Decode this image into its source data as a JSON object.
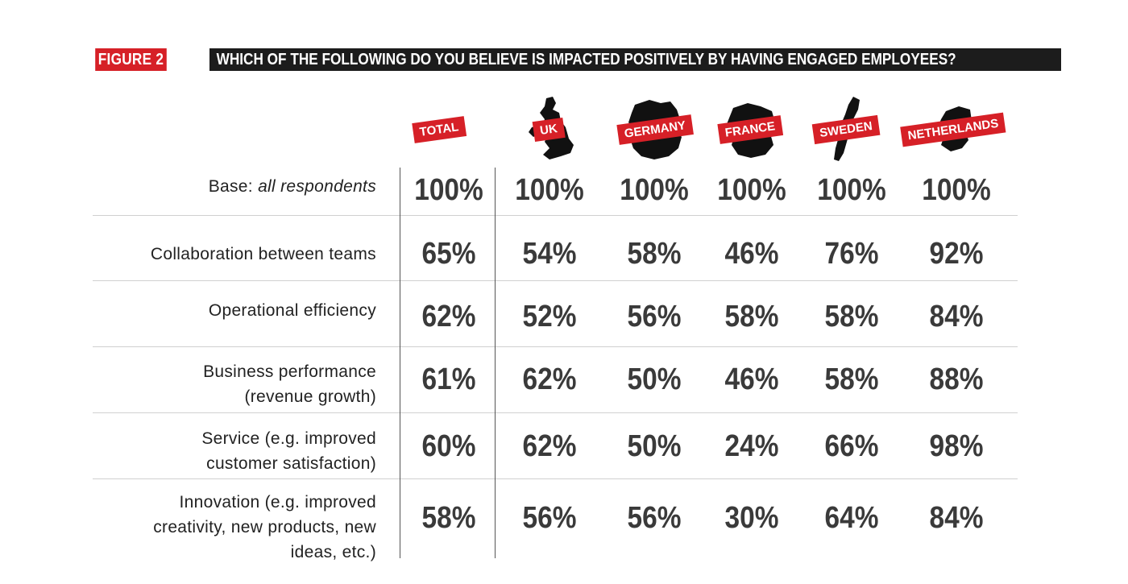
{
  "figure_label": "FIGURE 2",
  "figure_title": "WHICH OF THE FOLLOWING DO YOU BELIEVE IS IMPACTED POSITIVELY BY HAVING ENGAGED EMPLOYEES?",
  "colors": {
    "accent_red": "#d62027",
    "title_bar": "#1c1c1c",
    "map_fill": "#111111"
  },
  "chart_data": {
    "type": "table",
    "title": "WHICH OF THE FOLLOWING DO YOU BELIEVE IS IMPACTED POSITIVELY BY HAVING ENGAGED EMPLOYEES?",
    "columns": [
      "TOTAL",
      "UK",
      "GERMANY",
      "FRANCE",
      "SWEDEN",
      "NETHERLANDS"
    ],
    "base_label": "Base:",
    "base_label_italic": "all respondents",
    "base_values": [
      "100%",
      "100%",
      "100%",
      "100%",
      "100%",
      "100%"
    ],
    "rows": [
      {
        "label": "Collaboration between teams",
        "values": [
          "65%",
          "54%",
          "58%",
          "46%",
          "76%",
          "92%"
        ]
      },
      {
        "label": "Operational efficiency",
        "values": [
          "62%",
          "52%",
          "56%",
          "58%",
          "58%",
          "84%"
        ]
      },
      {
        "label_lines": [
          "Business performance",
          "(revenue growth)"
        ],
        "values": [
          "61%",
          "62%",
          "50%",
          "46%",
          "58%",
          "88%"
        ]
      },
      {
        "label_lines": [
          "Service (e.g. improved",
          "customer satisfaction)"
        ],
        "values": [
          "60%",
          "62%",
          "50%",
          "24%",
          "66%",
          "98%"
        ]
      },
      {
        "label_lines": [
          "Innovation (e.g. improved",
          "creativity, new products, new",
          "ideas, etc.)"
        ],
        "values": [
          "58%",
          "56%",
          "56%",
          "30%",
          "64%",
          "84%"
        ]
      }
    ]
  }
}
